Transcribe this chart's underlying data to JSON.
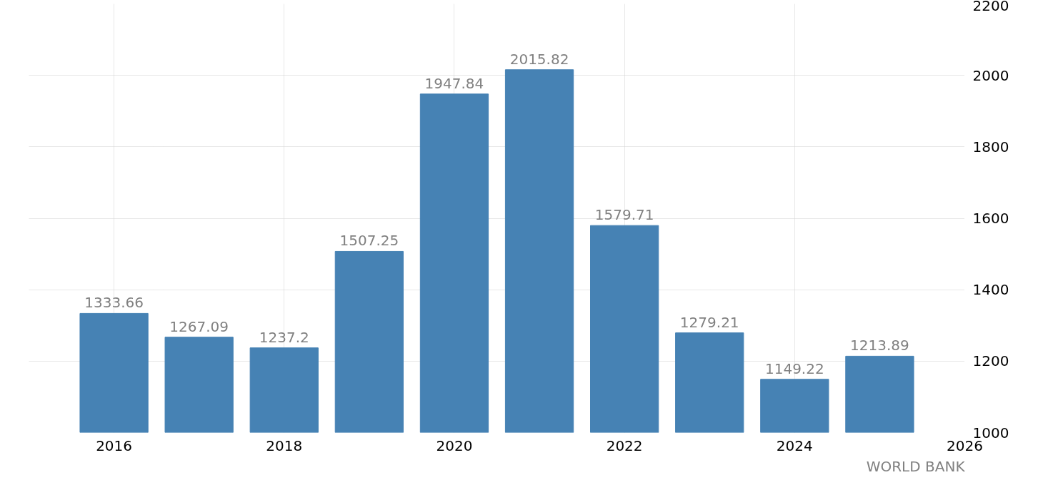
{
  "chart_data": {
    "type": "bar",
    "x": [
      2016,
      2017,
      2018,
      2019,
      2020,
      2021,
      2022,
      2023,
      2024,
      2025
    ],
    "values": [
      1333.66,
      1267.09,
      1237.2,
      1507.25,
      1947.84,
      2015.82,
      1579.71,
      1279.21,
      1149.22,
      1213.89
    ],
    "color": "#4682b4",
    "data_labels": true,
    "xlim": [
      2015,
      2026
    ],
    "xticks": [
      2016,
      2018,
      2020,
      2022,
      2024,
      2026
    ],
    "ylim": [
      1000,
      2200
    ],
    "yticks": [
      1000,
      1200,
      1400,
      1600,
      1800,
      2000,
      2200
    ],
    "grid": true,
    "annotations": [
      "WORLD BANK"
    ]
  }
}
